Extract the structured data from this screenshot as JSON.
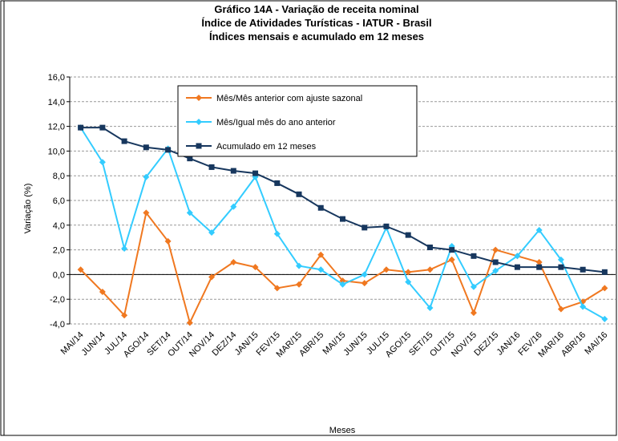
{
  "chart_data": {
    "type": "line",
    "title": [
      "Gráfico 14A - Variação de receita nominal",
      "Índice de Atividades Turísticas - IATUR - Brasil",
      "Índices mensais e acumulado em 12 meses"
    ],
    "y_label": "Variação (%)",
    "x_label": "Meses",
    "categories": [
      "MAI/14",
      "JUN/14",
      "JUL/14",
      "AGO/14",
      "SET/14",
      "OUT/14",
      "NOV/14",
      "DEZ/14",
      "JAN/15",
      "FEV/15",
      "MAR/15",
      "ABR/15",
      "MAI/15",
      "JUN/15",
      "JUL/15",
      "AGO/15",
      "SET/15",
      "OUT/15",
      "NOV/15",
      "DEZ/15",
      "JAN/16",
      "FEV/16",
      "MAR/16",
      "ABR/16",
      "MAI/16"
    ],
    "series": [
      {
        "name": "Mês/Mês anterior com ajuste sazonal",
        "color": "#f07820",
        "marker": "diamond",
        "values": [
          0.4,
          -1.4,
          -3.3,
          5.0,
          2.7,
          -3.9,
          -0.2,
          1.0,
          0.6,
          -1.1,
          -0.8,
          1.6,
          -0.5,
          -0.7,
          0.4,
          0.2,
          0.4,
          1.2,
          -3.1,
          2.0,
          1.5,
          1.0,
          -2.8,
          -2.2,
          -1.1
        ]
      },
      {
        "name": "Mês/Igual mês do ano anterior",
        "color": "#33ccff",
        "marker": "diamond",
        "values": [
          11.9,
          9.1,
          2.1,
          7.9,
          10.2,
          5.0,
          3.4,
          5.5,
          7.9,
          3.3,
          0.7,
          0.4,
          -0.8,
          0.0,
          3.8,
          -0.6,
          -2.7,
          2.3,
          -1.0,
          0.3,
          1.5,
          3.6,
          1.2,
          -2.6,
          -3.6
        ]
      },
      {
        "name": "Acumulado em 12 meses",
        "color": "#17375e",
        "marker": "square",
        "values": [
          11.9,
          11.9,
          10.8,
          10.3,
          10.1,
          9.4,
          8.7,
          8.4,
          8.2,
          7.4,
          6.5,
          5.4,
          4.5,
          3.8,
          3.9,
          3.2,
          2.2,
          2.0,
          1.5,
          1.0,
          0.6,
          0.6,
          0.6,
          0.4,
          0.2
        ]
      }
    ],
    "ylim": [
      -4,
      16
    ],
    "yticks": [
      {
        "value": -4,
        "label": "-4,0"
      },
      {
        "value": -2,
        "label": "-2,0"
      },
      {
        "value": 0,
        "label": "0,0"
      },
      {
        "value": 2,
        "label": "2,0"
      },
      {
        "value": 4,
        "label": "4,0"
      },
      {
        "value": 6,
        "label": "6,0"
      },
      {
        "value": 8,
        "label": "8,0"
      },
      {
        "value": 10,
        "label": "10,0"
      },
      {
        "value": 12,
        "label": "12,0"
      },
      {
        "value": 14,
        "label": "14,0"
      },
      {
        "value": 16,
        "label": "16,0"
      }
    ],
    "grid": true
  }
}
